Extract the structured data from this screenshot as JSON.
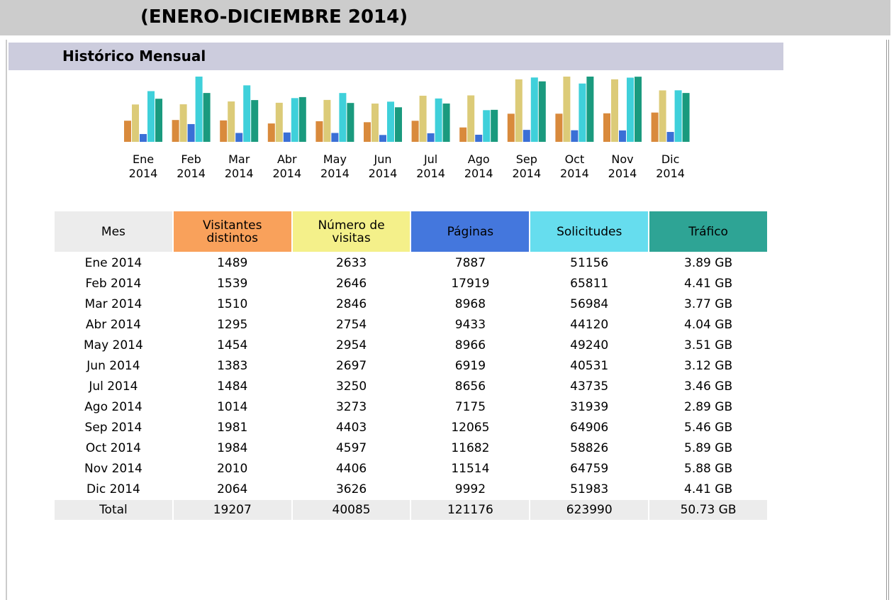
{
  "header": {
    "title": "(ENERO-DICIEMBRE 2014)"
  },
  "section": {
    "title": "Histórico Mensual"
  },
  "chart": {
    "months": [
      {
        "month": "Ene",
        "year": "2014"
      },
      {
        "month": "Feb",
        "year": "2014"
      },
      {
        "month": "Mar",
        "year": "2014"
      },
      {
        "month": "Abr",
        "year": "2014"
      },
      {
        "month": "May",
        "year": "2014"
      },
      {
        "month": "Jun",
        "year": "2014"
      },
      {
        "month": "Jul",
        "year": "2014"
      },
      {
        "month": "Ago",
        "year": "2014"
      },
      {
        "month": "Sep",
        "year": "2014"
      },
      {
        "month": "Oct",
        "year": "2014"
      },
      {
        "month": "Nov",
        "year": "2014"
      },
      {
        "month": "Dic",
        "year": "2014"
      }
    ]
  },
  "table": {
    "header": "Mes",
    "rows": [
      "Ene 2014",
      "Feb 2014",
      "Mar 2014",
      "Abr 2014",
      "May 2014",
      "Jun 2014",
      "Jul 2014",
      "Ago 2014",
      "Sep 2014",
      "Oct 2014",
      "Nov 2014",
      "Dic 2014"
    ],
    "total_label": "Total",
    "columns": [
      {
        "name": "Visitantes distintos",
        "color": "#f9a15b",
        "bar_color": "#d98a3c",
        "values": [
          1489,
          1539,
          1510,
          1295,
          1454,
          1383,
          1484,
          1014,
          1981,
          1984,
          2010,
          2064
        ],
        "total": 19207
      },
      {
        "name": "Número de visitas",
        "color": "#f4f08a",
        "bar_color": "#dccb78",
        "values": [
          2633,
          2646,
          2846,
          2754,
          2954,
          2697,
          3250,
          3273,
          4403,
          4597,
          4406,
          3626
        ],
        "total": 40085
      },
      {
        "name": "Páginas",
        "color": "#4477dd",
        "bar_color": "#3a6fd6",
        "values": [
          7887,
          17919,
          8968,
          9433,
          8966,
          6919,
          8656,
          7175,
          12065,
          11682,
          11514,
          9992
        ],
        "total": 121176
      },
      {
        "name": "Solicitudes",
        "color": "#66ddee",
        "bar_color": "#3fd0da",
        "values": [
          51156,
          65811,
          56984,
          44120,
          49240,
          40531,
          43735,
          31939,
          64906,
          58826,
          64759,
          51983
        ],
        "total": 623990
      },
      {
        "name": "Tráfico",
        "color": "#2ea495",
        "bar_color": "#1a9a7e",
        "values": [
          3.89,
          4.41,
          3.77,
          4.04,
          3.51,
          3.12,
          3.46,
          2.89,
          5.46,
          5.89,
          5.88,
          4.41
        ],
        "value_labels": [
          "3.89 GB",
          "4.41 GB",
          "3.77 GB",
          "4.04 GB",
          "3.51 GB",
          "3.12 GB",
          "3.46 GB",
          "2.89 GB",
          "5.46 GB",
          "5.89 GB",
          "5.88 GB",
          "4.41 GB"
        ],
        "total": 50.73,
        "total_label": "50.73 GB"
      }
    ]
  }
}
